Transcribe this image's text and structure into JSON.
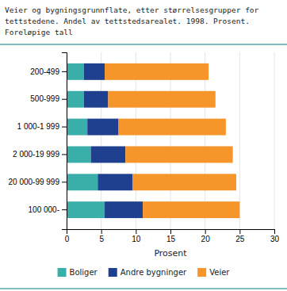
{
  "chart_data": {
    "type": "bar",
    "orientation": "horizontal",
    "stacked": true,
    "title": "Veier og bygningsgrunnflate, etter størrelsesgrupper for\ntettstedene. Andel av tettstedsarealet. 1998. Prosent.\nForeløpige tall",
    "x_label": "Prosent",
    "categories": [
      "200-499",
      "500-999",
      "1 000-1 999",
      "2 000-19 999",
      "20 000-99 999",
      "100 000-"
    ],
    "series": [
      {
        "name": "Boliger",
        "color": "#3aafa9",
        "values": [
          2.5,
          2.5,
          3.0,
          3.5,
          4.5,
          5.5
        ]
      },
      {
        "name": "Andre bygninger",
        "color": "#1f3f8f",
        "values": [
          3.0,
          3.5,
          4.5,
          5.0,
          5.0,
          5.5
        ]
      },
      {
        "name": "Veier",
        "color": "#f5952a",
        "values": [
          15.0,
          15.5,
          15.5,
          15.5,
          15.0,
          14.0
        ]
      }
    ],
    "xlim": [
      0,
      30
    ],
    "xticks": [
      0,
      5,
      10,
      15,
      20,
      25,
      30
    ],
    "grid": true,
    "legend": "bottom"
  }
}
